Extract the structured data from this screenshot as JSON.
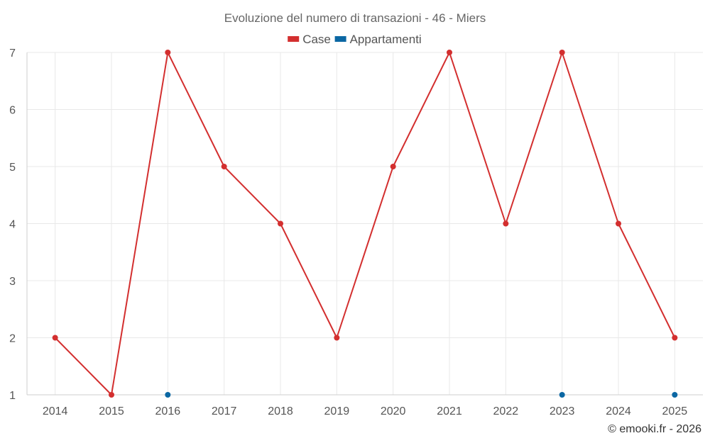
{
  "chart_data": {
    "type": "line",
    "title": "Evoluzione del numero di transazioni - 46 - Miers",
    "categories": [
      "2014",
      "2015",
      "2016",
      "2017",
      "2018",
      "2019",
      "2020",
      "2021",
      "2022",
      "2023",
      "2024",
      "2025"
    ],
    "series": [
      {
        "name": "Case",
        "color": "#d32f2f",
        "values": [
          2,
          1,
          7,
          5,
          4,
          2,
          5,
          7,
          4,
          7,
          4,
          2
        ]
      },
      {
        "name": "Appartamenti",
        "color": "#0b67a3",
        "values": [
          null,
          null,
          1,
          null,
          null,
          null,
          null,
          null,
          null,
          1,
          null,
          1
        ]
      }
    ],
    "ylim": [
      1,
      7
    ],
    "yticks": [
      1,
      2,
      3,
      4,
      5,
      6,
      7
    ],
    "xlabel": "",
    "ylabel": "",
    "grid": true,
    "legend_position": "top-center"
  },
  "credit": "© emooki.fr - 2026"
}
